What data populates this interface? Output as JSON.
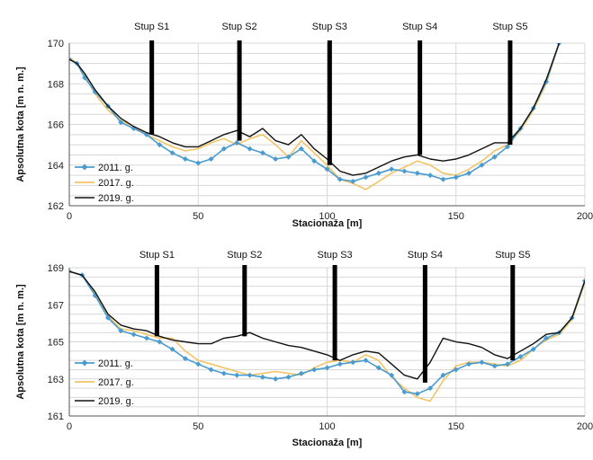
{
  "chart_data": [
    {
      "type": "line",
      "title": "",
      "xlabel": "Stacionaža [m]",
      "ylabel": "Apsolutna kota [m n. m.]",
      "xlim": [
        0,
        200
      ],
      "ylim": [
        162,
        170
      ],
      "xticks": [
        0,
        50,
        100,
        150,
        200
      ],
      "yticks": [
        162,
        164,
        166,
        168,
        170
      ],
      "grid": true,
      "legend": "bottom-left",
      "piers": [
        {
          "label": "Stup S1",
          "x": 32,
          "y_bottom": 165.5
        },
        {
          "label": "Stup S2",
          "x": 66,
          "y_bottom": 165.2
        },
        {
          "label": "Stup S3",
          "x": 101,
          "y_bottom": 164.0
        },
        {
          "label": "Stup S4",
          "x": 136,
          "y_bottom": 164.5
        },
        {
          "label": "Stup S5",
          "x": 171,
          "y_bottom": 165.0
        }
      ],
      "series": [
        {
          "name": "2011. g.",
          "color": "#4a9bd0",
          "marker": "diamond",
          "x": [
            0,
            3,
            6,
            10,
            15,
            20,
            25,
            30,
            35,
            40,
            45,
            50,
            55,
            60,
            65,
            70,
            75,
            80,
            85,
            90,
            95,
            100,
            105,
            110,
            115,
            120,
            125,
            130,
            135,
            140,
            145,
            150,
            155,
            160,
            165,
            170,
            175,
            180,
            185,
            190
          ],
          "y": [
            169.2,
            169.0,
            168.3,
            167.6,
            166.9,
            166.1,
            165.8,
            165.5,
            165.0,
            164.6,
            164.3,
            164.1,
            164.3,
            164.8,
            165.1,
            164.8,
            164.6,
            164.3,
            164.4,
            164.8,
            164.2,
            163.8,
            163.3,
            163.2,
            163.4,
            163.6,
            163.8,
            163.7,
            163.6,
            163.5,
            163.3,
            163.4,
            163.6,
            164.0,
            164.4,
            164.9,
            165.8,
            166.8,
            168.1,
            170.0
          ]
        },
        {
          "name": "2017. g.",
          "color": "#f2c466",
          "marker": "none",
          "x": [
            0,
            3,
            6,
            10,
            15,
            20,
            25,
            30,
            35,
            40,
            45,
            50,
            55,
            60,
            65,
            70,
            75,
            80,
            85,
            90,
            95,
            100,
            105,
            110,
            115,
            120,
            125,
            130,
            135,
            140,
            145,
            150,
            155,
            160,
            165,
            170,
            175,
            180,
            185,
            190
          ],
          "y": [
            169.3,
            169.0,
            168.4,
            167.5,
            166.7,
            166.2,
            165.9,
            165.5,
            165.2,
            164.9,
            164.7,
            164.8,
            165.1,
            165.3,
            165.0,
            165.3,
            165.5,
            165.0,
            164.4,
            165.2,
            164.6,
            164.0,
            163.3,
            163.1,
            162.8,
            163.2,
            163.6,
            163.9,
            164.2,
            164.0,
            163.6,
            163.5,
            163.8,
            164.2,
            164.7,
            165.0,
            165.7,
            166.7,
            168.0,
            170.0
          ]
        },
        {
          "name": "2019. g.",
          "color": "#111111",
          "marker": "none",
          "x": [
            0,
            3,
            6,
            10,
            15,
            20,
            25,
            30,
            35,
            40,
            45,
            50,
            55,
            60,
            65,
            70,
            75,
            80,
            85,
            90,
            95,
            100,
            105,
            110,
            115,
            120,
            125,
            130,
            135,
            140,
            145,
            150,
            155,
            160,
            165,
            170,
            175,
            180,
            185,
            190
          ],
          "y": [
            169.2,
            169.0,
            168.5,
            167.7,
            166.9,
            166.3,
            165.9,
            165.6,
            165.4,
            165.1,
            164.9,
            164.9,
            165.2,
            165.5,
            165.7,
            165.4,
            165.8,
            165.2,
            165.0,
            165.5,
            164.8,
            164.3,
            163.7,
            163.5,
            163.6,
            163.9,
            164.2,
            164.4,
            164.5,
            164.3,
            164.2,
            164.3,
            164.5,
            164.8,
            165.1,
            165.1,
            165.8,
            166.8,
            168.2,
            170.0
          ]
        }
      ]
    },
    {
      "type": "line",
      "title": "",
      "xlabel": "Stacionaža [m]",
      "ylabel": "Apsolutna kota [m n. m.]",
      "xlim": [
        0,
        200
      ],
      "ylim": [
        161,
        169
      ],
      "xticks": [
        0,
        50,
        100,
        150,
        200
      ],
      "yticks": [
        161,
        163,
        165,
        167,
        169
      ],
      "grid": true,
      "legend": "bottom-left",
      "piers": [
        {
          "label": "Stup S1",
          "x": 34,
          "y_bottom": 165.3
        },
        {
          "label": "Stup S2",
          "x": 68,
          "y_bottom": 165.3
        },
        {
          "label": "Stup S3",
          "x": 103,
          "y_bottom": 164.0
        },
        {
          "label": "Stup S4",
          "x": 138,
          "y_bottom": 162.8
        },
        {
          "label": "Stup S5",
          "x": 172,
          "y_bottom": 164.0
        }
      ],
      "series": [
        {
          "name": "2011. g.",
          "color": "#4a9bd0",
          "marker": "diamond",
          "x": [
            0,
            5,
            10,
            15,
            20,
            25,
            30,
            35,
            40,
            45,
            50,
            55,
            60,
            65,
            70,
            75,
            80,
            85,
            90,
            95,
            100,
            105,
            110,
            115,
            120,
            125,
            130,
            135,
            140,
            145,
            150,
            155,
            160,
            165,
            170,
            175,
            180,
            185,
            190,
            195,
            200
          ],
          "y": [
            168.8,
            168.6,
            167.5,
            166.3,
            165.6,
            165.4,
            165.2,
            165.0,
            164.6,
            164.1,
            163.8,
            163.5,
            163.3,
            163.2,
            163.2,
            163.1,
            163.0,
            163.1,
            163.3,
            163.5,
            163.6,
            163.8,
            163.9,
            164.0,
            163.6,
            163.2,
            162.3,
            162.2,
            162.5,
            163.2,
            163.5,
            163.8,
            163.9,
            163.7,
            163.8,
            164.2,
            164.6,
            165.2,
            165.5,
            166.3,
            168.3
          ]
        },
        {
          "name": "2017. g.",
          "color": "#f2c466",
          "marker": "none",
          "x": [
            0,
            5,
            10,
            15,
            20,
            25,
            30,
            35,
            40,
            45,
            50,
            55,
            60,
            65,
            70,
            75,
            80,
            85,
            90,
            95,
            100,
            105,
            110,
            115,
            120,
            125,
            130,
            135,
            140,
            145,
            150,
            155,
            160,
            165,
            170,
            175,
            180,
            185,
            190,
            195,
            200
          ],
          "y": [
            168.8,
            168.6,
            167.6,
            166.4,
            165.7,
            165.6,
            165.4,
            165.2,
            165.2,
            164.5,
            164.0,
            163.8,
            163.6,
            163.4,
            163.2,
            163.3,
            163.4,
            163.3,
            163.2,
            163.6,
            163.9,
            164.0,
            163.9,
            164.3,
            164.0,
            163.1,
            162.5,
            162.0,
            161.8,
            162.9,
            163.7,
            163.9,
            163.9,
            163.8,
            163.7,
            164.0,
            164.6,
            165.1,
            165.4,
            166.2,
            168.2
          ]
        },
        {
          "name": "2019. g.",
          "color": "#111111",
          "marker": "none",
          "x": [
            0,
            5,
            10,
            15,
            20,
            25,
            30,
            35,
            40,
            45,
            50,
            55,
            60,
            65,
            70,
            75,
            80,
            85,
            90,
            95,
            100,
            105,
            110,
            115,
            120,
            125,
            130,
            135,
            140,
            145,
            150,
            155,
            160,
            165,
            170,
            175,
            180,
            185,
            190,
            195,
            200
          ],
          "y": [
            168.8,
            168.6,
            167.7,
            166.5,
            165.9,
            165.7,
            165.6,
            165.3,
            165.1,
            165.0,
            164.9,
            164.9,
            165.2,
            165.3,
            165.5,
            165.2,
            165.0,
            164.8,
            164.7,
            164.5,
            164.3,
            164.0,
            164.3,
            164.5,
            164.4,
            163.8,
            163.2,
            163.0,
            163.9,
            165.2,
            165.0,
            164.9,
            164.7,
            164.3,
            164.1,
            164.5,
            164.9,
            165.4,
            165.5,
            166.3,
            168.3
          ]
        }
      ]
    }
  ]
}
